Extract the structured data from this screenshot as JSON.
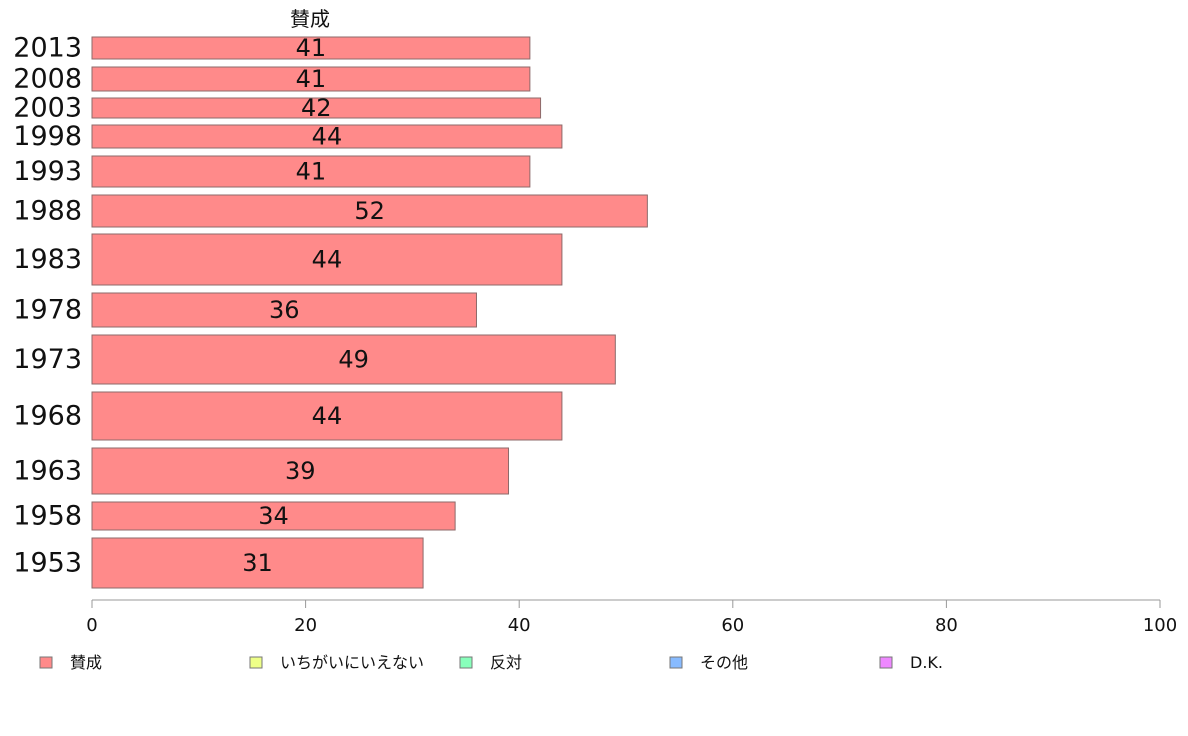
{
  "chart_data": {
    "type": "bar",
    "orientation": "horizontal",
    "stacked": true,
    "categories": [
      "2013",
      "2008",
      "2003",
      "1998",
      "1993",
      "1988",
      "1983",
      "1978",
      "1973",
      "1968",
      "1963",
      "1958",
      "1953"
    ],
    "series": [
      {
        "name": "賛成",
        "color": "#ff8a8a",
        "values": [
          41,
          41,
          42,
          44,
          41,
          52,
          44,
          36,
          49,
          44,
          39,
          34,
          31
        ]
      }
    ],
    "series_title": "賛成",
    "xlim": [
      0,
      100
    ],
    "xticks": [
      "0",
      "20",
      "40",
      "60",
      "80",
      "100"
    ],
    "legend": {
      "placement": "bottom",
      "items": [
        {
          "label": "賛成",
          "color": "#ff8a8a"
        },
        {
          "label": "いちがいにいえない",
          "color": "#eeff88"
        },
        {
          "label": "反対",
          "color": "#88ffbb"
        },
        {
          "label": "その他",
          "color": "#88bbff"
        },
        {
          "label": "D.K.",
          "color": "#ee88ff"
        }
      ]
    }
  }
}
